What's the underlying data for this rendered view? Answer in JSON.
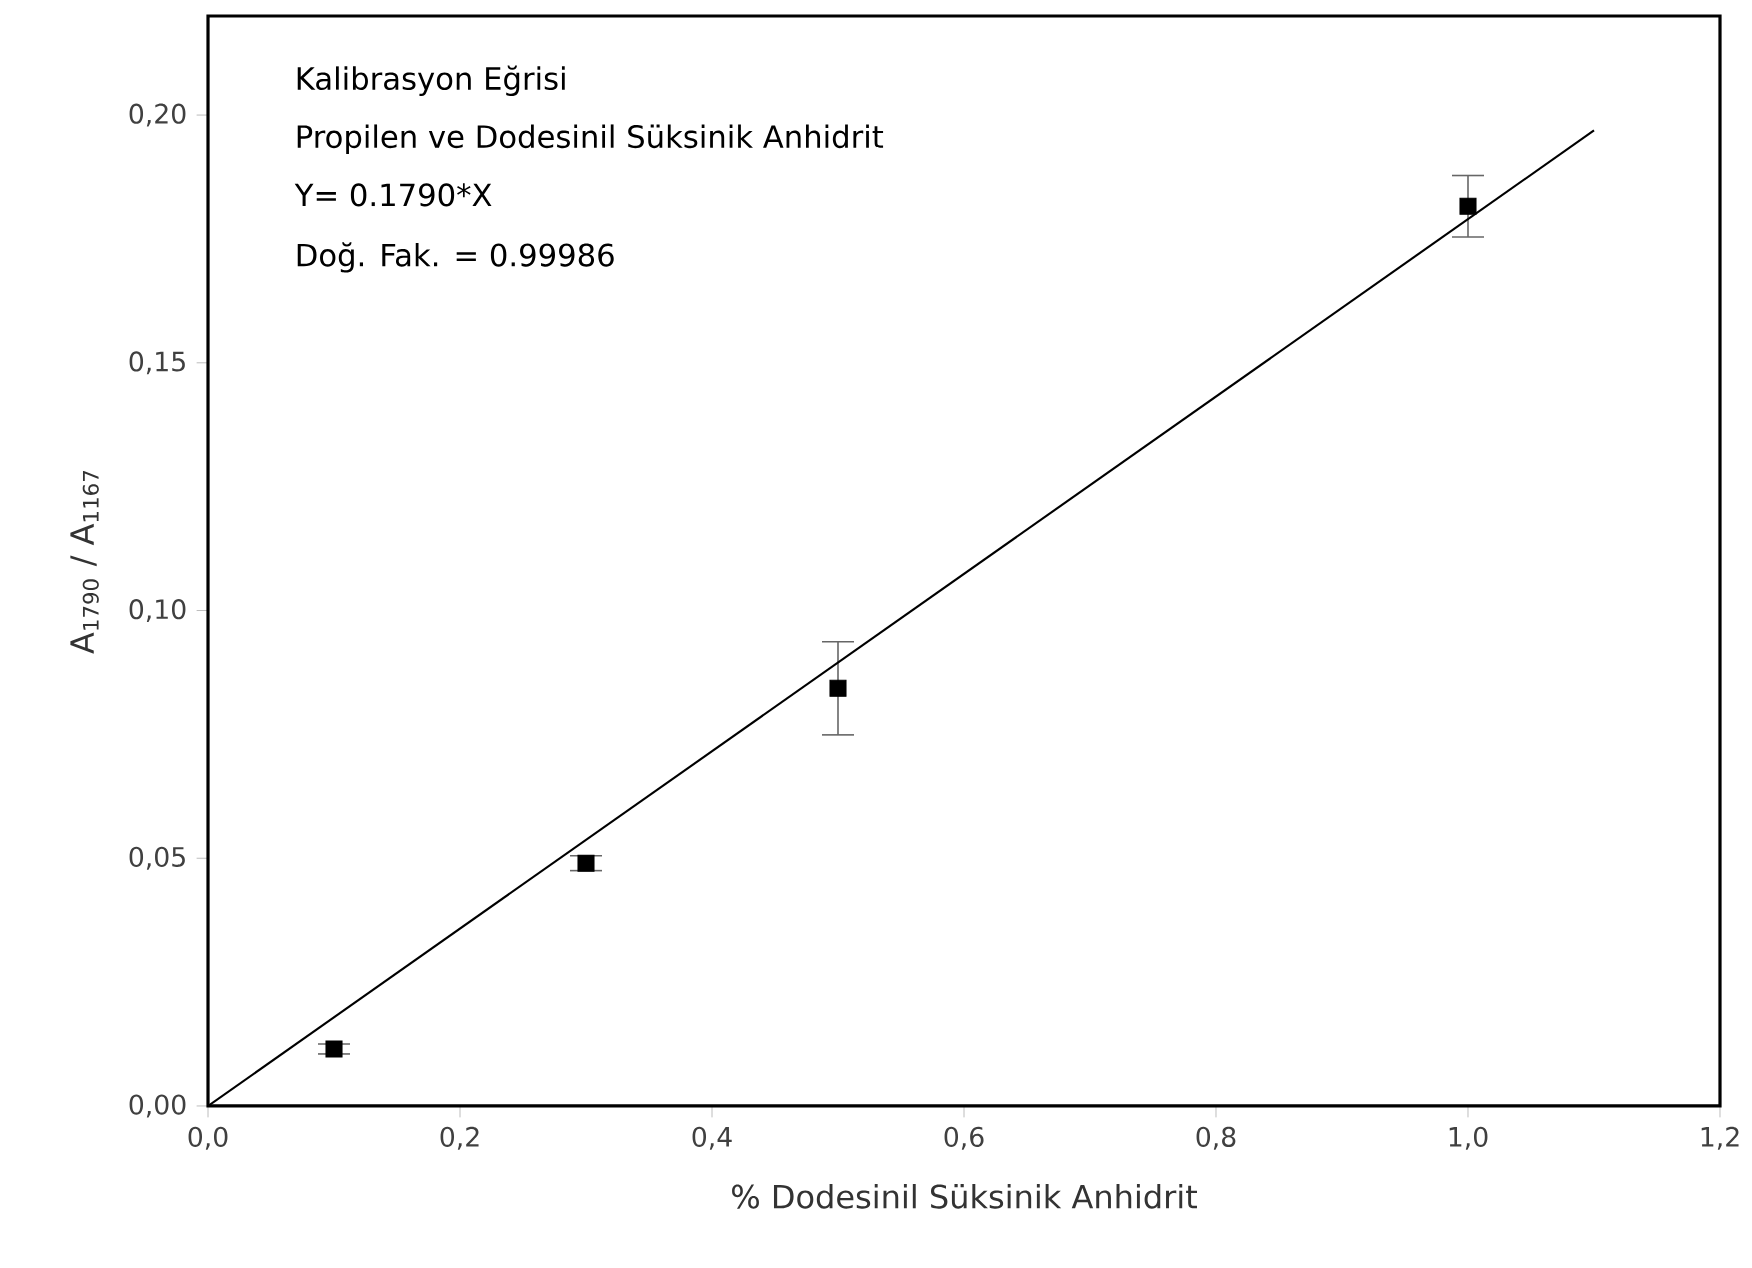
{
  "chart_data": {
    "type": "scatter",
    "xlabel": "% Dodesinil Süksinik Anhidrit",
    "ylabel": "A$_{1790}$ / A$_{1167}$",
    "annotations": [
      "Kalibrasyon Eğrisi",
      "Propilen ve Dodesinil Süksinik Anhidrit",
      "Y= 0.1790*X",
      "Doğ. Fak. = 0.99986"
    ],
    "xlim": [
      0,
      1.2
    ],
    "ylim": [
      0,
      0.22
    ],
    "xticks": [
      {
        "value": 0,
        "label": "0,0"
      },
      {
        "value": 0.2,
        "label": "0,2"
      },
      {
        "value": 0.4,
        "label": "0,4"
      },
      {
        "value": 0.6,
        "label": "0,6"
      },
      {
        "value": 0.8,
        "label": "0,8"
      },
      {
        "value": 1.0,
        "label": "1,0"
      },
      {
        "value": 1.2,
        "label": "1,2"
      }
    ],
    "yticks": [
      {
        "value": 0,
        "label": "0,00"
      },
      {
        "value": 0.05,
        "label": "0,05"
      },
      {
        "value": 0.1,
        "label": "0,10"
      },
      {
        "value": 0.15,
        "label": "0,15"
      },
      {
        "value": 0.2,
        "label": "0,20"
      }
    ],
    "grid": false,
    "series": [
      {
        "color": "#000000",
        "marker": "square",
        "x": [
          0.1,
          0.3,
          0.5,
          1.0
        ],
        "values": [
          0.0115,
          0.049,
          0.0843,
          0.1816
        ],
        "errors": [
          0.001,
          0.0015,
          0.0094,
          0.0062
        ]
      },
      {
        "type": "line",
        "color": "#000000",
        "marker": "none",
        "line_style": "solid",
        "x": [
          0,
          1.1
        ],
        "values": [
          0,
          0.1969
        ]
      }
    ]
  }
}
